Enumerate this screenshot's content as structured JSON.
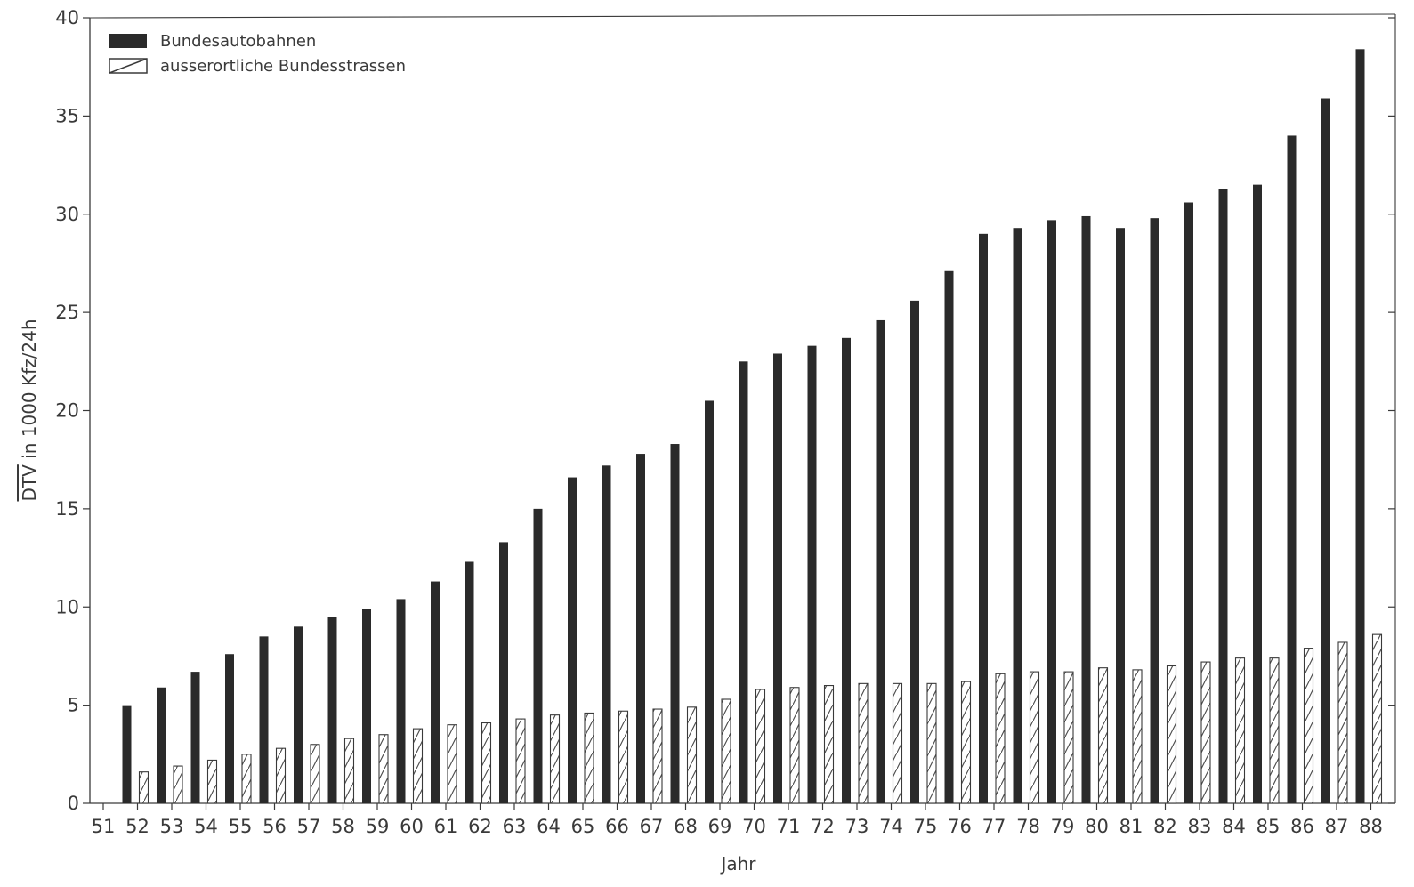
{
  "chart_data": {
    "type": "bar",
    "xlabel": "Jahr",
    "ylabel": "DTV in 1000 Kfz/24h",
    "ylabel_overline": "DTV",
    "ylabel_rest": " in 1000 Kfz/24h",
    "ylim": [
      0,
      40
    ],
    "yticks": [
      0,
      5,
      10,
      15,
      20,
      25,
      30,
      35,
      40
    ],
    "categories": [
      "51",
      "52",
      "53",
      "54",
      "55",
      "56",
      "57",
      "58",
      "59",
      "60",
      "61",
      "62",
      "63",
      "64",
      "65",
      "66",
      "67",
      "68",
      "69",
      "70",
      "71",
      "72",
      "73",
      "74",
      "75",
      "76",
      "77",
      "78",
      "79",
      "80",
      "81",
      "82",
      "83",
      "84",
      "85",
      "86",
      "87",
      "88"
    ],
    "legend_position": "top-left",
    "grid": false,
    "series": [
      {
        "name": "Bundesautobahnen",
        "style": "solid",
        "color": "#2a2a2a",
        "values": [
          null,
          5.0,
          5.9,
          6.7,
          7.6,
          8.5,
          9.0,
          9.5,
          9.9,
          10.4,
          11.3,
          12.3,
          13.3,
          15.0,
          16.6,
          17.2,
          17.8,
          18.3,
          20.5,
          22.5,
          22.9,
          23.3,
          23.7,
          24.6,
          25.6,
          27.1,
          29.0,
          29.3,
          29.7,
          29.9,
          29.3,
          29.8,
          30.6,
          31.3,
          31.5,
          34.0,
          35.9,
          38.4
        ]
      },
      {
        "name": "ausserortliche Bundesstrassen",
        "style": "hatched",
        "color": "#2a2a2a",
        "values": [
          null,
          1.6,
          1.9,
          2.2,
          2.5,
          2.8,
          3.0,
          3.3,
          3.5,
          3.8,
          4.0,
          4.1,
          4.3,
          4.5,
          4.6,
          4.7,
          4.8,
          4.9,
          5.3,
          5.8,
          5.9,
          6.0,
          6.1,
          6.1,
          6.1,
          6.2,
          6.6,
          6.7,
          6.7,
          6.9,
          6.8,
          7.0,
          7.2,
          7.4,
          7.4,
          7.9,
          8.2,
          8.6
        ]
      }
    ]
  }
}
